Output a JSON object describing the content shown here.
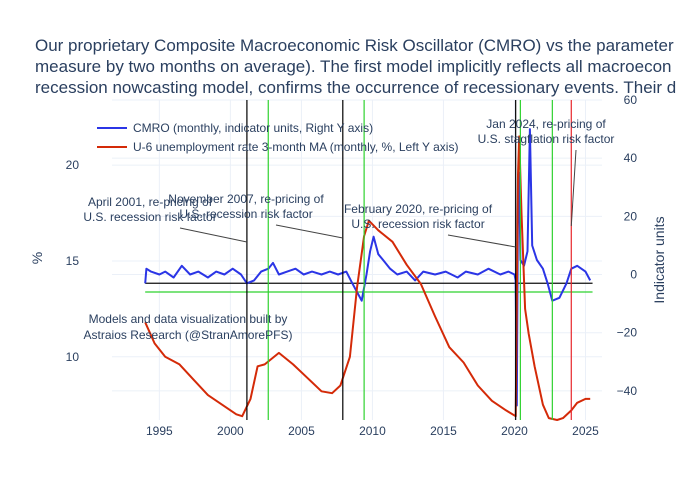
{
  "chart_data": {
    "type": "line",
    "title_lines": [
      "Our proprietary Composite Macroeconomic Risk Oscillator (CMRO) vs the parameter",
      "measure by two months on average). The first model implicitly reflects all macroecon",
      "recession nowcasting model, confirms the occurrence of recessionary events. Their d"
    ],
    "xlabel": "",
    "ylabel_left": "%",
    "ylabel_right": "Indicator units",
    "xlim": [
      "1991-09-01",
      "2026-03-01"
    ],
    "ylim_left": [
      6.7,
      23.4
    ],
    "ylim_right": [
      -50,
      60
    ],
    "x_ticks": [
      {
        "label": "1995",
        "value": "1995-01-01"
      },
      {
        "label": "2000",
        "value": "2000-01-01"
      },
      {
        "label": "2005",
        "value": "2005-01-01"
      },
      {
        "label": "2010",
        "value": "2010-01-01"
      },
      {
        "label": "2015",
        "value": "2015-01-01"
      },
      {
        "label": "2020",
        "value": "2020-01-01"
      },
      {
        "label": "2025",
        "value": "2025-01-01"
      }
    ],
    "y_ticks_left": [
      {
        "label": "10",
        "value": 10
      },
      {
        "label": "15",
        "value": 15
      },
      {
        "label": "20",
        "value": 20
      }
    ],
    "y_ticks_right": [
      {
        "label": "−40",
        "value": -40
      },
      {
        "label": "−20",
        "value": -20
      },
      {
        "label": "0",
        "value": 0
      },
      {
        "label": "20",
        "value": 20
      },
      {
        "label": "40",
        "value": 40
      },
      {
        "label": "60",
        "value": 60
      }
    ],
    "legend": {
      "placement": "top-left",
      "entries": [
        {
          "label": "CMRO (monthly, indicator units, Right Y axis)",
          "color": "#2b35e6"
        },
        {
          "label": "U-6 unemployment rate 3-month MA (monthly, %, Left Y axis)",
          "color": "#d42a08"
        }
      ]
    },
    "series": [
      {
        "name": "CMRO (monthly, indicator units, Right Y axis)",
        "axis": "right",
        "color": "#2b35e6",
        "points": [
          [
            "1994-01-01",
            -3
          ],
          [
            "1994-02-01",
            2
          ],
          [
            "1994-06-01",
            1
          ],
          [
            "1995-01-01",
            0
          ],
          [
            "1995-06-01",
            1
          ],
          [
            "1996-01-01",
            -1
          ],
          [
            "1996-08-01",
            3
          ],
          [
            "1997-03-01",
            0
          ],
          [
            "1997-10-01",
            1
          ],
          [
            "1998-06-01",
            -1
          ],
          [
            "1999-01-01",
            1
          ],
          [
            "1999-08-01",
            0
          ],
          [
            "2000-03-01",
            2
          ],
          [
            "2000-10-01",
            0
          ],
          [
            "2001-03-01",
            -3
          ],
          [
            "2001-09-01",
            -2
          ],
          [
            "2002-03-01",
            1
          ],
          [
            "2002-09-01",
            2
          ],
          [
            "2003-01-01",
            4
          ],
          [
            "2003-06-01",
            0
          ],
          [
            "2004-01-01",
            1
          ],
          [
            "2004-08-01",
            2
          ],
          [
            "2005-03-01",
            0
          ],
          [
            "2005-10-01",
            1
          ],
          [
            "2006-06-01",
            0
          ],
          [
            "2007-01-01",
            1
          ],
          [
            "2007-08-01",
            0
          ],
          [
            "2008-03-01",
            1
          ],
          [
            "2008-08-01",
            -3
          ],
          [
            "2008-12-01",
            -6
          ],
          [
            "2009-04-01",
            -9
          ],
          [
            "2009-08-01",
            0
          ],
          [
            "2009-11-01",
            8
          ],
          [
            "2010-02-01",
            13
          ],
          [
            "2010-06-01",
            7
          ],
          [
            "2010-10-01",
            5
          ],
          [
            "2011-04-01",
            2
          ],
          [
            "2011-10-01",
            0
          ],
          [
            "2012-06-01",
            1
          ],
          [
            "2013-01-01",
            -2
          ],
          [
            "2013-08-01",
            1
          ],
          [
            "2014-06-01",
            0
          ],
          [
            "2015-03-01",
            1
          ],
          [
            "2016-01-01",
            -1
          ],
          [
            "2016-08-01",
            1
          ],
          [
            "2017-06-01",
            0
          ],
          [
            "2018-03-01",
            2
          ],
          [
            "2019-01-01",
            0
          ],
          [
            "2019-08-01",
            1
          ],
          [
            "2020-01-01",
            0
          ],
          [
            "2020-02-01",
            -2
          ],
          [
            "2020-03-01",
            -45
          ],
          [
            "2020-04-01",
            25
          ],
          [
            "2020-05-01",
            35
          ],
          [
            "2020-06-01",
            5
          ],
          [
            "2020-09-01",
            3
          ],
          [
            "2020-12-01",
            8
          ],
          [
            "2021-02-01",
            50
          ],
          [
            "2021-04-01",
            10
          ],
          [
            "2021-08-01",
            5
          ],
          [
            "2022-01-01",
            2
          ],
          [
            "2022-05-01",
            -3
          ],
          [
            "2022-09-01",
            -9
          ],
          [
            "2023-03-01",
            -8
          ],
          [
            "2023-09-01",
            -3
          ],
          [
            "2024-01-01",
            2
          ],
          [
            "2024-06-01",
            3
          ],
          [
            "2025-01-01",
            1
          ],
          [
            "2025-05-01",
            -2
          ]
        ]
      },
      {
        "name": "U-6 unemployment rate 3-month MA (monthly, %, Left Y axis)",
        "axis": "left",
        "color": "#d42a08",
        "points": [
          [
            "1994-01-01",
            11.8
          ],
          [
            "1994-09-01",
            10.7
          ],
          [
            "1995-06-01",
            10.0
          ],
          [
            "1996-06-01",
            9.6
          ],
          [
            "1997-06-01",
            8.8
          ],
          [
            "1998-06-01",
            8.0
          ],
          [
            "1999-06-01",
            7.5
          ],
          [
            "2000-06-01",
            7.0
          ],
          [
            "2000-11-01",
            6.9
          ],
          [
            "2001-06-01",
            7.8
          ],
          [
            "2001-12-01",
            9.5
          ],
          [
            "2002-06-01",
            9.6
          ],
          [
            "2003-06-01",
            10.2
          ],
          [
            "2004-06-01",
            9.6
          ],
          [
            "2005-06-01",
            8.9
          ],
          [
            "2006-06-01",
            8.2
          ],
          [
            "2007-03-01",
            8.1
          ],
          [
            "2007-10-01",
            8.5
          ],
          [
            "2008-06-01",
            10.0
          ],
          [
            "2008-12-01",
            13.6
          ],
          [
            "2009-06-01",
            16.3
          ],
          [
            "2009-10-01",
            17.1
          ],
          [
            "2010-06-01",
            16.6
          ],
          [
            "2011-06-01",
            16.0
          ],
          [
            "2012-06-01",
            14.8
          ],
          [
            "2013-06-01",
            13.8
          ],
          [
            "2014-06-01",
            12.1
          ],
          [
            "2015-06-01",
            10.5
          ],
          [
            "2016-06-01",
            9.7
          ],
          [
            "2017-06-01",
            8.5
          ],
          [
            "2018-06-01",
            7.7
          ],
          [
            "2019-06-01",
            7.2
          ],
          [
            "2020-02-01",
            6.9
          ],
          [
            "2020-04-01",
            19.5
          ],
          [
            "2020-05-01",
            21.5
          ],
          [
            "2020-07-01",
            17.5
          ],
          [
            "2020-10-01",
            12.5
          ],
          [
            "2021-01-01",
            11.2
          ],
          [
            "2021-06-01",
            9.5
          ],
          [
            "2022-01-01",
            7.5
          ],
          [
            "2022-06-01",
            6.8
          ],
          [
            "2023-01-01",
            6.7
          ],
          [
            "2023-06-01",
            6.8
          ],
          [
            "2024-01-01",
            7.2
          ],
          [
            "2024-06-01",
            7.6
          ],
          [
            "2025-01-01",
            7.8
          ],
          [
            "2025-05-01",
            7.8
          ]
        ]
      }
    ],
    "vertical_lines": [
      {
        "x": "2001-03-01",
        "color": "#000000"
      },
      {
        "x": "2007-12-01",
        "color": "#000000"
      },
      {
        "x": "2020-02-01",
        "color": "#000000"
      },
      {
        "x": "2024-01-01",
        "color": "#e8262b"
      },
      {
        "x": "2002-09-01",
        "color": "#2fd22f"
      },
      {
        "x": "2009-06-01",
        "color": "#2fd22f"
      },
      {
        "x": "2020-06-01",
        "color": "#2fd22f"
      },
      {
        "x": "2022-09-01",
        "color": "#2fd22f"
      }
    ],
    "horizontal_lines": [
      {
        "axis": "right",
        "y": -3,
        "color": "#111111"
      },
      {
        "axis": "right",
        "y": -6,
        "color": "#2fd22f"
      }
    ],
    "annotations": [
      {
        "text_lines": [
          "April 2001, re-pricing of",
          "U.S. recession risk factor"
        ],
        "x": "2001-03-01",
        "y_right": 11
      },
      {
        "text_lines": [
          "November 2007, re-pricing of",
          "U.S. recession risk factor"
        ],
        "x": "2007-12-01",
        "y_right": 12
      },
      {
        "text_lines": [
          "February 2020, re-pricing of",
          "U.S. recession risk factor"
        ],
        "x": "2020-02-01",
        "y_right": 8
      },
      {
        "text_lines": [
          "Jan 2024, re-pricing of",
          "U.S. stagflation risk factor"
        ],
        "x": "2024-01-01",
        "y_right": 16
      }
    ],
    "watermark_lines": [
      "Models and data visualization built by",
      "Astraios Research (@StranAmorePFS)"
    ],
    "grid": true
  }
}
